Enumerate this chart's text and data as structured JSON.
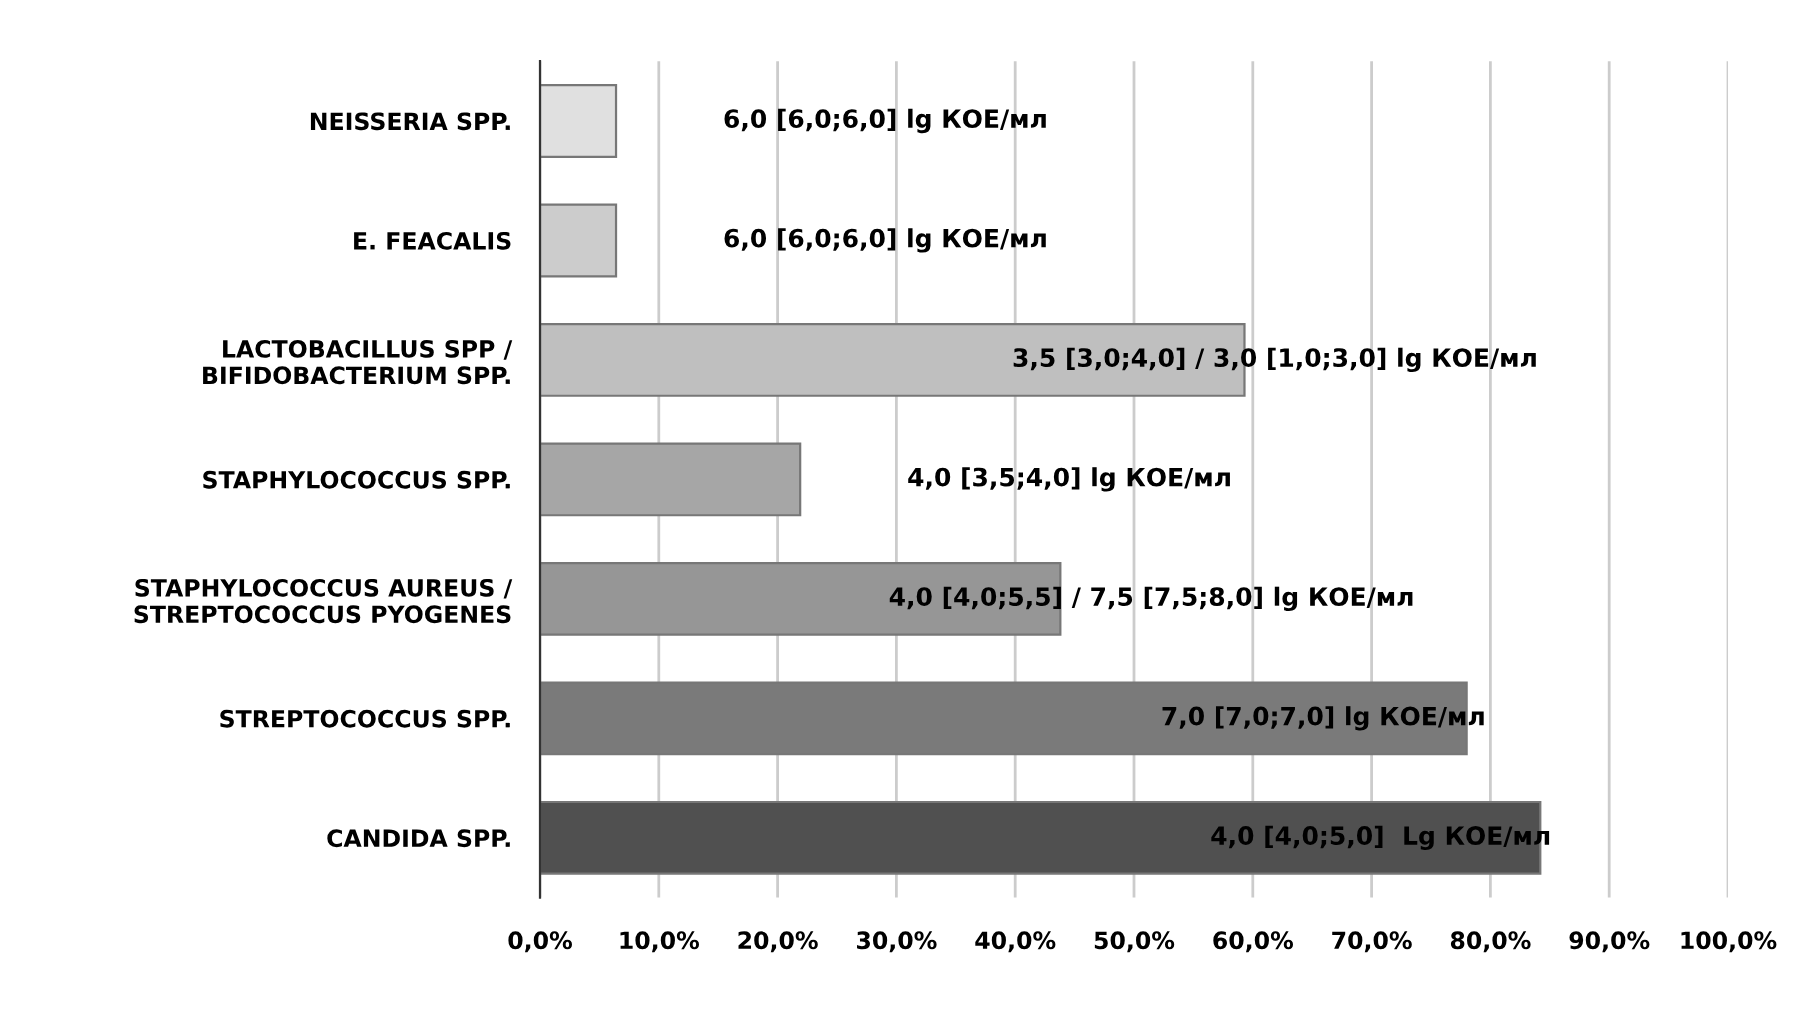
{
  "chart_data": {
    "type": "bar",
    "orientation": "horizontal",
    "categories": [
      "NEISSERIA SPP.",
      "E. FEACALIS",
      "LACTOBACILLUS SPP /\nBIFIDOBACTERIUM SPP.",
      "STAPHYLOCOCCUS SPP.",
      "STAPHYLOCOCCUS AUREUS /\nSTREPTOCOCCUS PYOGENES",
      "STREPTOCOCCUS SPP.",
      "CANDIDA SPP."
    ],
    "values": [
      6.4,
      6.4,
      59.3,
      21.9,
      43.8,
      78.0,
      84.2
    ],
    "colors": [
      "#e0e0e0",
      "#cccccc",
      "#bfbfbf",
      "#a6a6a6",
      "#969696",
      "#7a7a7a",
      "#505050"
    ],
    "annotations": [
      "6,0 [6,0;6,0] lg КОЕ/мл",
      "6,0 [6,0;6,0] lg КОЕ/мл",
      "3,5 [3,0;4,0] / 3,0 [1,0;3,0] lg КОЕ/мл",
      "4,0 [3,5;4,0] lg КОЕ/мл",
      "4,0 [4,0;5,5] / 7,5 [7,5;8,0] lg КОЕ/мл",
      "7,0 [7,0;7,0] lg КОЕ/мл",
      "4,0 [4,0;5,0]  Lg КОЕ/мл"
    ],
    "xlim": [
      0,
      100
    ],
    "xticks": [
      {
        "value": 0,
        "label": "0,0%"
      },
      {
        "value": 10,
        "label": "10,0%"
      },
      {
        "value": 20,
        "label": "20,0%"
      },
      {
        "value": 30,
        "label": "30,0%"
      },
      {
        "value": 40,
        "label": "40,0%"
      },
      {
        "value": 50,
        "label": "50,0%"
      },
      {
        "value": 60,
        "label": "60,0%"
      },
      {
        "value": 70,
        "label": "70,0%"
      },
      {
        "value": 80,
        "label": "80,0%"
      },
      {
        "value": 90,
        "label": "90,0%"
      },
      {
        "value": 100,
        "label": "100,0%"
      }
    ],
    "grid": "x",
    "legend": false
  }
}
